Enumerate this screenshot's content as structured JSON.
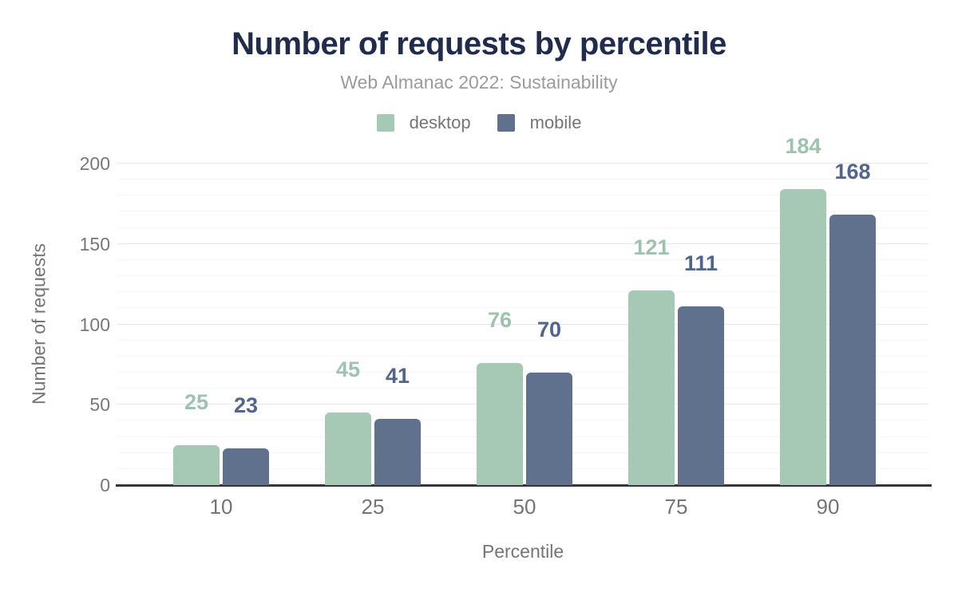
{
  "header": {
    "title": "Number of requests by percentile",
    "subtitle": "Web Almanac 2022: Sustainability"
  },
  "legend": [
    {
      "label": "desktop",
      "color": "#a5c9b4"
    },
    {
      "label": "mobile",
      "color": "#60718e"
    }
  ],
  "axes": {
    "y_title": "Number of requests",
    "x_title": "Percentile",
    "y_ticks": [
      "0",
      "50",
      "100",
      "150",
      "200"
    ],
    "x_ticks": [
      "10",
      "25",
      "50",
      "75",
      "90"
    ]
  },
  "chart_data": {
    "type": "bar",
    "title": "Number of requests by percentile",
    "subtitle": "Web Almanac 2022: Sustainability",
    "categories": [
      "10",
      "25",
      "50",
      "75",
      "90"
    ],
    "series": [
      {
        "name": "desktop",
        "color": "#a5c9b4",
        "label_color": "#9cc3ad",
        "values": [
          25,
          45,
          76,
          121,
          184
        ]
      },
      {
        "name": "mobile",
        "color": "#60718e",
        "label_color": "#52658a",
        "values": [
          23,
          41,
          70,
          111,
          168
        ]
      }
    ],
    "xlabel": "Percentile",
    "ylabel": "Number of requests",
    "ylim": [
      0,
      200
    ],
    "y_major_step": 50,
    "y_minor_step": 10,
    "grid": "on",
    "legend_position": "top",
    "value_labels": "above-bars"
  }
}
